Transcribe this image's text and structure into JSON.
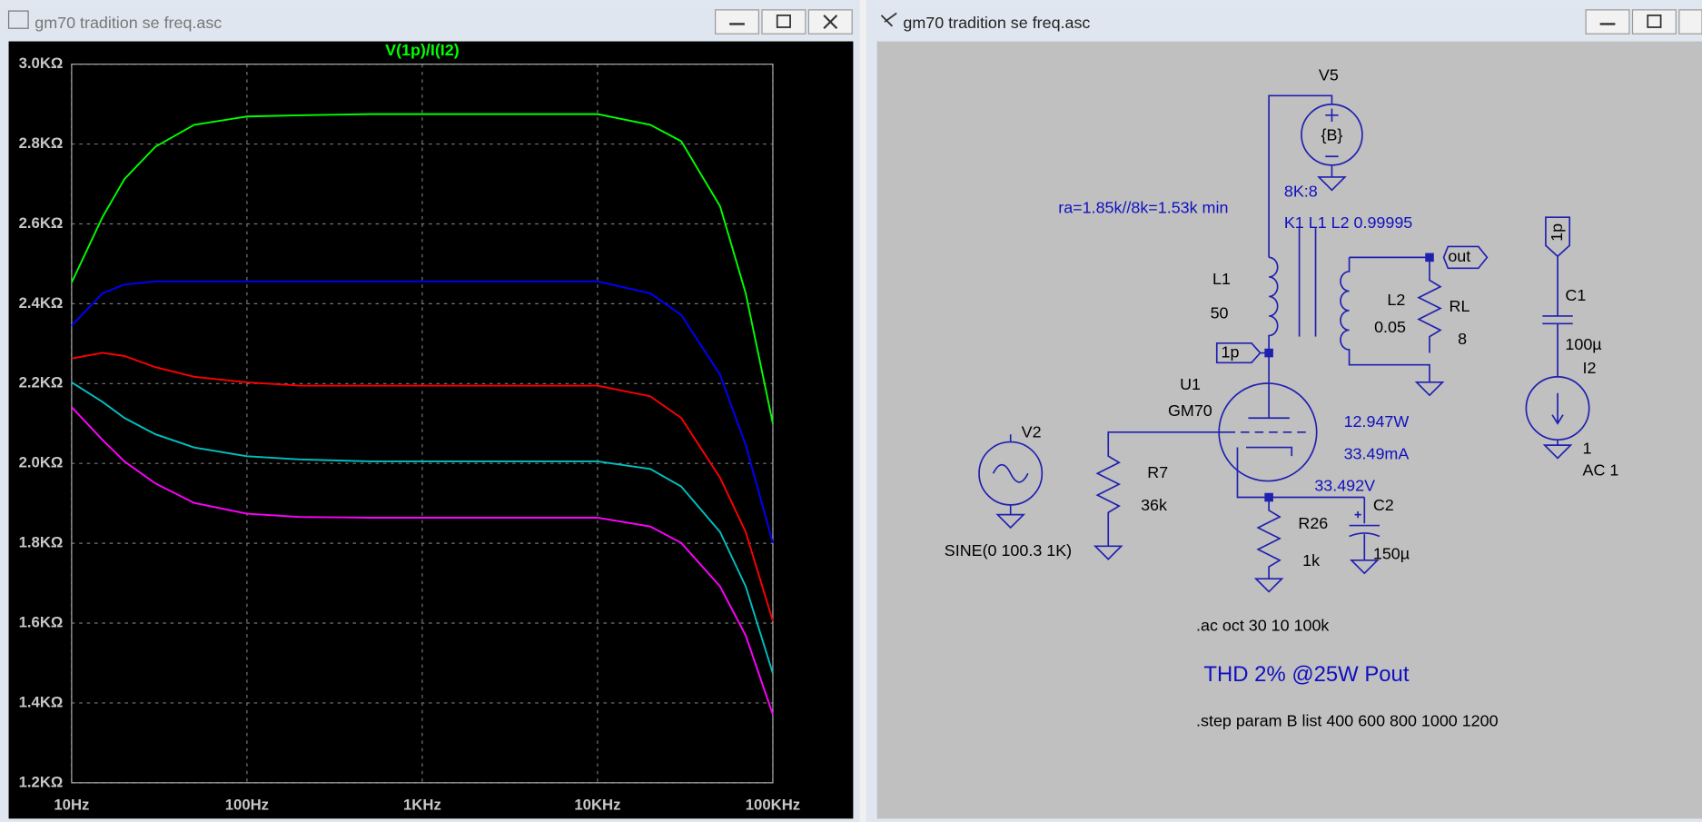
{
  "windows": [
    {
      "title": "gm70 tradition se freq.asc"
    },
    {
      "title": "gm70 tradition se freq.asc"
    }
  ],
  "chart_data": {
    "type": "line",
    "title": "V(1p)/I(I2)",
    "xscale": "log",
    "grid": true,
    "x": [
      10,
      15,
      20,
      30,
      50,
      100,
      200,
      500,
      1000,
      2000,
      5000,
      10000,
      20000,
      30000,
      50000,
      70000,
      100000
    ],
    "series": [
      {
        "color": "#00ff00",
        "values": [
          2453,
          2617,
          2712,
          2793,
          2848,
          2869,
          2872,
          2875,
          2875,
          2875,
          2875,
          2875,
          2848,
          2807,
          2644,
          2426,
          2100
        ]
      },
      {
        "color": "#0000ff",
        "values": [
          2345,
          2426,
          2448,
          2456,
          2456,
          2456,
          2456,
          2456,
          2456,
          2456,
          2456,
          2456,
          2426,
          2372,
          2222,
          2046,
          1801
        ]
      },
      {
        "color": "#ff0000",
        "values": [
          2263,
          2277,
          2269,
          2241,
          2217,
          2203,
          2195,
          2195,
          2195,
          2195,
          2195,
          2195,
          2168,
          2114,
          1964,
          1828,
          1605
        ]
      },
      {
        "color": "#00c0c0",
        "values": [
          2203,
          2154,
          2114,
          2073,
          2040,
          2018,
          2010,
          2005,
          2005,
          2005,
          2005,
          2005,
          1986,
          1942,
          1828,
          1692,
          1474
        ]
      },
      {
        "color": "#ff00ff",
        "values": [
          2141,
          2059,
          2005,
          1950,
          1901,
          1874,
          1866,
          1864,
          1864,
          1864,
          1864,
          1864,
          1842,
          1801,
          1692,
          1569,
          1371
        ]
      }
    ],
    "xlim": [
      10,
      100000
    ],
    "xticks": [
      {
        "value": 10,
        "label": "10Hz"
      },
      {
        "value": 100,
        "label": "100Hz"
      },
      {
        "value": 1000,
        "label": "1KHz"
      },
      {
        "value": 10000,
        "label": "10KHz"
      },
      {
        "value": 100000,
        "label": "100KHz"
      }
    ],
    "ylim": [
      1200,
      3000
    ],
    "yticks": [
      {
        "value": 1200,
        "label": "1.2KΩ"
      },
      {
        "value": 1400,
        "label": "1.4KΩ"
      },
      {
        "value": 1600,
        "label": "1.6KΩ"
      },
      {
        "value": 1800,
        "label": "1.8KΩ"
      },
      {
        "value": 2000,
        "label": "2.0KΩ"
      },
      {
        "value": 2200,
        "label": "2.2KΩ"
      },
      {
        "value": 2400,
        "label": "2.4KΩ"
      },
      {
        "value": 2600,
        "label": "2.6KΩ"
      },
      {
        "value": 2800,
        "label": "2.8KΩ"
      },
      {
        "value": 3000,
        "label": "3.0KΩ"
      }
    ]
  },
  "schematic": {
    "labels": [
      "V5",
      "{B}",
      "8K:8",
      "ra=1.85k//8k=1.53k min",
      "K1 L1 L2 0.99995",
      "out",
      "L1",
      "50",
      "L2",
      "0.05",
      "RL",
      "8",
      "1p",
      "U1",
      "GM70",
      "V2",
      "R7",
      "36k",
      "12.947W",
      "33.49mA",
      "33.492V",
      "C2",
      "R26",
      "1k",
      "150µ",
      "SINE(0 100.3 1K)",
      ".ac oct 30 10 100k",
      "THD 2% @25W Pout",
      ".step param B list 400 600 800 1000 1200",
      "1p",
      "C1",
      "100µ",
      "I2",
      "1",
      "AC 1"
    ]
  }
}
